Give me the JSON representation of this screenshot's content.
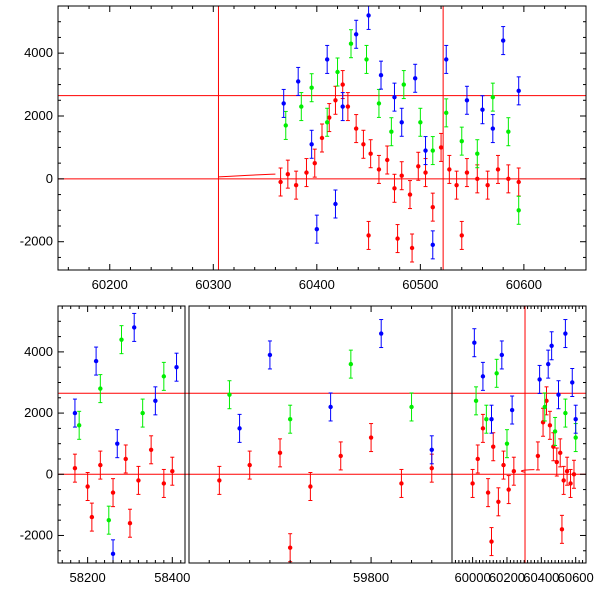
{
  "colors": {
    "red": "#ff0000",
    "green": "#00ee00",
    "blue": "#0000ff",
    "axis": "#000000"
  },
  "chart_data": [
    {
      "type": "scatter",
      "title": "",
      "xlabel": "",
      "ylabel": "",
      "xlim": [
        60150,
        60660
      ],
      "ylim": [
        -2900,
        5500
      ],
      "x_ticks": [
        60200,
        60300,
        60400,
        60500,
        60600
      ],
      "y_ticks": [
        -2000,
        0,
        2000,
        4000
      ],
      "reference_lines": {
        "horizontal": [
          0,
          2650
        ],
        "vertical": [
          60305,
          60522
        ]
      },
      "series": [
        {
          "color": "red",
          "points": [
            [
              60365,
              -100
            ],
            [
              60372,
              150
            ],
            [
              60380,
              -200
            ],
            [
              60390,
              200
            ],
            [
              60398,
              500
            ],
            [
              60405,
              1300
            ],
            [
              60412,
              1950
            ],
            [
              60418,
              2500
            ],
            [
              60425,
              3000
            ],
            [
              60430,
              2300
            ],
            [
              60438,
              1600
            ],
            [
              60445,
              1100
            ],
            [
              60452,
              800
            ],
            [
              60460,
              300
            ],
            [
              60468,
              600
            ],
            [
              60475,
              -300
            ],
            [
              60482,
              100
            ],
            [
              60490,
              -500
            ],
            [
              60498,
              400
            ],
            [
              60505,
              200
            ],
            [
              60512,
              -900
            ],
            [
              60520,
              1000
            ],
            [
              60528,
              300
            ],
            [
              60535,
              -200
            ],
            [
              60545,
              200
            ],
            [
              60555,
              0
            ],
            [
              60565,
              -200
            ],
            [
              60575,
              300
            ],
            [
              60585,
              0
            ],
            [
              60595,
              -100
            ],
            [
              60450,
              -1800
            ],
            [
              60478,
              -1900
            ],
            [
              60492,
              -2200
            ],
            [
              60540,
              -1800
            ]
          ]
        },
        {
          "color": "green",
          "points": [
            [
              60370,
              1700
            ],
            [
              60385,
              2300
            ],
            [
              60395,
              2900
            ],
            [
              60410,
              1800
            ],
            [
              60420,
              3400
            ],
            [
              60433,
              4300
            ],
            [
              60448,
              3800
            ],
            [
              60460,
              2400
            ],
            [
              60472,
              1500
            ],
            [
              60484,
              3000
            ],
            [
              60500,
              1800
            ],
            [
              60512,
              900
            ],
            [
              60525,
              2100
            ],
            [
              60540,
              1200
            ],
            [
              60555,
              800
            ],
            [
              60570,
              2600
            ],
            [
              60585,
              1500
            ],
            [
              60595,
              -1000
            ]
          ]
        },
        {
          "color": "blue",
          "points": [
            [
              60368,
              2400
            ],
            [
              60382,
              3100
            ],
            [
              60395,
              1100
            ],
            [
              60410,
              3800
            ],
            [
              60425,
              2300
            ],
            [
              60438,
              4600
            ],
            [
              60450,
              5200
            ],
            [
              60462,
              3300
            ],
            [
              60475,
              2600
            ],
            [
              60482,
              1800
            ],
            [
              60495,
              3200
            ],
            [
              60505,
              900
            ],
            [
              60512,
              -2100
            ],
            [
              60525,
              3800
            ],
            [
              60545,
              2500
            ],
            [
              60560,
              2200
            ],
            [
              60570,
              1600
            ],
            [
              60580,
              4400
            ],
            [
              60595,
              2800
            ],
            [
              60400,
              -1600
            ],
            [
              60418,
              -800
            ]
          ]
        }
      ]
    },
    {
      "type": "scatter",
      "title": "",
      "xlabel": "",
      "ylabel": "",
      "ylim": [
        -2900,
        5500
      ],
      "x_ticks": [
        58200,
        58400,
        59800,
        60000,
        60200,
        60400,
        60600
      ],
      "y_ticks": [
        -2000,
        0,
        2000,
        4000
      ],
      "segments": [
        {
          "range": [
            58130,
            58430
          ]
        },
        {
          "range": [
            59620,
            59880
          ]
        },
        {
          "range": [
            59880,
            60660
          ]
        }
      ],
      "reference_lines": {
        "horizontal": [
          0,
          2650
        ],
        "vertical": [
          60305
        ]
      },
      "series": [
        {
          "color": "red",
          "points": [
            [
              58170,
              200
            ],
            [
              58200,
              -400
            ],
            [
              58230,
              300
            ],
            [
              58260,
              -600
            ],
            [
              58290,
              500
            ],
            [
              58320,
              -200
            ],
            [
              58350,
              800
            ],
            [
              58380,
              -300
            ],
            [
              58400,
              100
            ],
            [
              58210,
              -1400
            ],
            [
              58300,
              -1600
            ],
            [
              59650,
              -200
            ],
            [
              59680,
              300
            ],
            [
              59710,
              700
            ],
            [
              59740,
              -400
            ],
            [
              59770,
              600
            ],
            [
              59800,
              1200
            ],
            [
              59830,
              -300
            ],
            [
              59860,
              200
            ],
            [
              59720,
              -2400
            ],
            [
              60000,
              -300
            ],
            [
              60030,
              500
            ],
            [
              60060,
              1500
            ],
            [
              60090,
              -600
            ],
            [
              60120,
              900
            ],
            [
              60150,
              -900
            ],
            [
              60180,
              300
            ],
            [
              60210,
              -500
            ],
            [
              60240,
              100
            ],
            [
              60110,
              -2200
            ],
            [
              60380,
              600
            ],
            [
              60410,
              1700
            ],
            [
              60430,
              2400
            ],
            [
              60450,
              1600
            ],
            [
              60470,
              900
            ],
            [
              60490,
              400
            ],
            [
              60510,
              700
            ],
            [
              60530,
              -200
            ],
            [
              60550,
              100
            ],
            [
              60570,
              -300
            ],
            [
              60590,
              0
            ],
            [
              60520,
              -1800
            ]
          ]
        },
        {
          "color": "green",
          "points": [
            [
              58180,
              1600
            ],
            [
              58230,
              2800
            ],
            [
              58280,
              4400
            ],
            [
              58330,
              2000
            ],
            [
              58380,
              3200
            ],
            [
              58250,
              -1500
            ],
            [
              59660,
              2600
            ],
            [
              59720,
              1800
            ],
            [
              59780,
              3600
            ],
            [
              59840,
              2200
            ],
            [
              60020,
              2400
            ],
            [
              60080,
              1800
            ],
            [
              60140,
              3300
            ],
            [
              60200,
              1000
            ],
            [
              60420,
              2200
            ],
            [
              60480,
              1400
            ],
            [
              60540,
              2000
            ],
            [
              60600,
              1200
            ]
          ]
        },
        {
          "color": "blue",
          "points": [
            [
              58170,
              2000
            ],
            [
              58220,
              3700
            ],
            [
              58270,
              1000
            ],
            [
              58310,
              4800
            ],
            [
              58360,
              2400
            ],
            [
              58410,
              3500
            ],
            [
              58260,
              -2600
            ],
            [
              59670,
              1500
            ],
            [
              59700,
              3900
            ],
            [
              59760,
              2200
            ],
            [
              59810,
              4600
            ],
            [
              59860,
              800
            ],
            [
              60010,
              4300
            ],
            [
              60060,
              3200
            ],
            [
              60110,
              1800
            ],
            [
              60170,
              3900
            ],
            [
              60230,
              2100
            ],
            [
              60390,
              3100
            ],
            [
              60440,
              3600
            ],
            [
              60460,
              4200
            ],
            [
              60500,
              2600
            ],
            [
              60540,
              4600
            ],
            [
              60580,
              3000
            ],
            [
              60600,
              1800
            ]
          ]
        }
      ]
    }
  ]
}
